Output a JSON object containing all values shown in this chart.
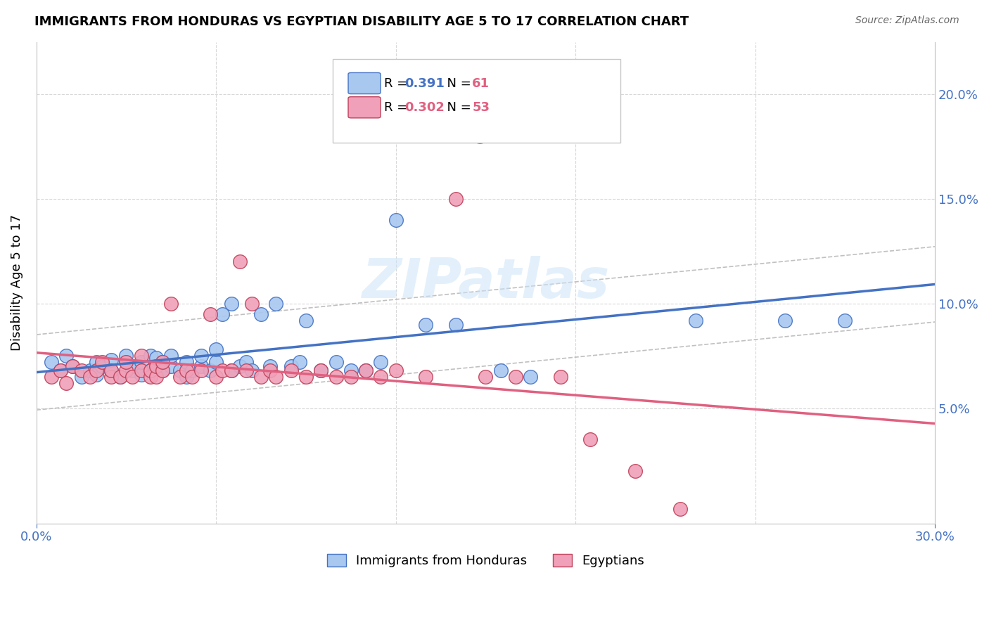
{
  "title": "IMMIGRANTS FROM HONDURAS VS EGYPTIAN DISABILITY AGE 5 TO 17 CORRELATION CHART",
  "source": "Source: ZipAtlas.com",
  "ylabel": "Disability Age 5 to 17",
  "legend1_label": "Immigrants from Honduras",
  "legend2_label": "Egyptians",
  "legend1_R": "0.391",
  "legend1_N": "61",
  "legend2_R": "0.302",
  "legend2_N": "53",
  "xlim": [
    0.0,
    0.3
  ],
  "ylim": [
    -0.005,
    0.225
  ],
  "yticks": [
    0.05,
    0.1,
    0.15,
    0.2
  ],
  "ytick_labels": [
    "5.0%",
    "10.0%",
    "15.0%",
    "20.0%"
  ],
  "color_blue": "#A8C8F0",
  "color_pink": "#F0A0B8",
  "color_blue_line": "#4472C4",
  "color_pink_line": "#E06080",
  "color_blue_dark": "#4472C4",
  "color_pink_dark": "#C0405A",
  "watermark": "ZIPatlas",
  "blue_x": [
    0.005,
    0.008,
    0.01,
    0.012,
    0.015,
    0.018,
    0.02,
    0.02,
    0.022,
    0.025,
    0.025,
    0.028,
    0.03,
    0.03,
    0.032,
    0.033,
    0.035,
    0.035,
    0.038,
    0.038,
    0.04,
    0.04,
    0.042,
    0.042,
    0.045,
    0.045,
    0.048,
    0.05,
    0.05,
    0.052,
    0.055,
    0.055,
    0.058,
    0.06,
    0.06,
    0.062,
    0.065,
    0.065,
    0.068,
    0.07,
    0.072,
    0.075,
    0.078,
    0.08,
    0.085,
    0.088,
    0.09,
    0.095,
    0.1,
    0.105,
    0.11,
    0.115,
    0.12,
    0.13,
    0.14,
    0.148,
    0.155,
    0.165,
    0.22,
    0.25,
    0.27
  ],
  "blue_y": [
    0.072,
    0.068,
    0.075,
    0.07,
    0.065,
    0.068,
    0.072,
    0.066,
    0.07,
    0.068,
    0.073,
    0.065,
    0.072,
    0.075,
    0.068,
    0.07,
    0.066,
    0.072,
    0.068,
    0.075,
    0.07,
    0.074,
    0.068,
    0.072,
    0.07,
    0.075,
    0.068,
    0.065,
    0.072,
    0.068,
    0.07,
    0.075,
    0.068,
    0.072,
    0.078,
    0.095,
    0.068,
    0.1,
    0.07,
    0.072,
    0.068,
    0.095,
    0.07,
    0.1,
    0.07,
    0.072,
    0.092,
    0.068,
    0.072,
    0.068,
    0.068,
    0.072,
    0.14,
    0.09,
    0.09,
    0.18,
    0.068,
    0.065,
    0.092,
    0.092,
    0.092
  ],
  "pink_x": [
    0.005,
    0.008,
    0.01,
    0.012,
    0.015,
    0.018,
    0.02,
    0.022,
    0.025,
    0.025,
    0.028,
    0.03,
    0.03,
    0.032,
    0.035,
    0.035,
    0.038,
    0.038,
    0.04,
    0.04,
    0.042,
    0.042,
    0.045,
    0.048,
    0.05,
    0.052,
    0.055,
    0.058,
    0.06,
    0.062,
    0.065,
    0.068,
    0.07,
    0.072,
    0.075,
    0.078,
    0.08,
    0.085,
    0.09,
    0.095,
    0.1,
    0.105,
    0.11,
    0.115,
    0.12,
    0.13,
    0.14,
    0.15,
    0.16,
    0.175,
    0.185,
    0.2,
    0.215
  ],
  "pink_y": [
    0.065,
    0.068,
    0.062,
    0.07,
    0.068,
    0.065,
    0.068,
    0.072,
    0.065,
    0.068,
    0.065,
    0.068,
    0.072,
    0.065,
    0.068,
    0.075,
    0.065,
    0.068,
    0.065,
    0.07,
    0.068,
    0.072,
    0.1,
    0.065,
    0.068,
    0.065,
    0.068,
    0.095,
    0.065,
    0.068,
    0.068,
    0.12,
    0.068,
    0.1,
    0.065,
    0.068,
    0.065,
    0.068,
    0.065,
    0.068,
    0.065,
    0.065,
    0.068,
    0.065,
    0.068,
    0.065,
    0.15,
    0.065,
    0.065,
    0.065,
    0.035,
    0.02,
    0.002
  ]
}
